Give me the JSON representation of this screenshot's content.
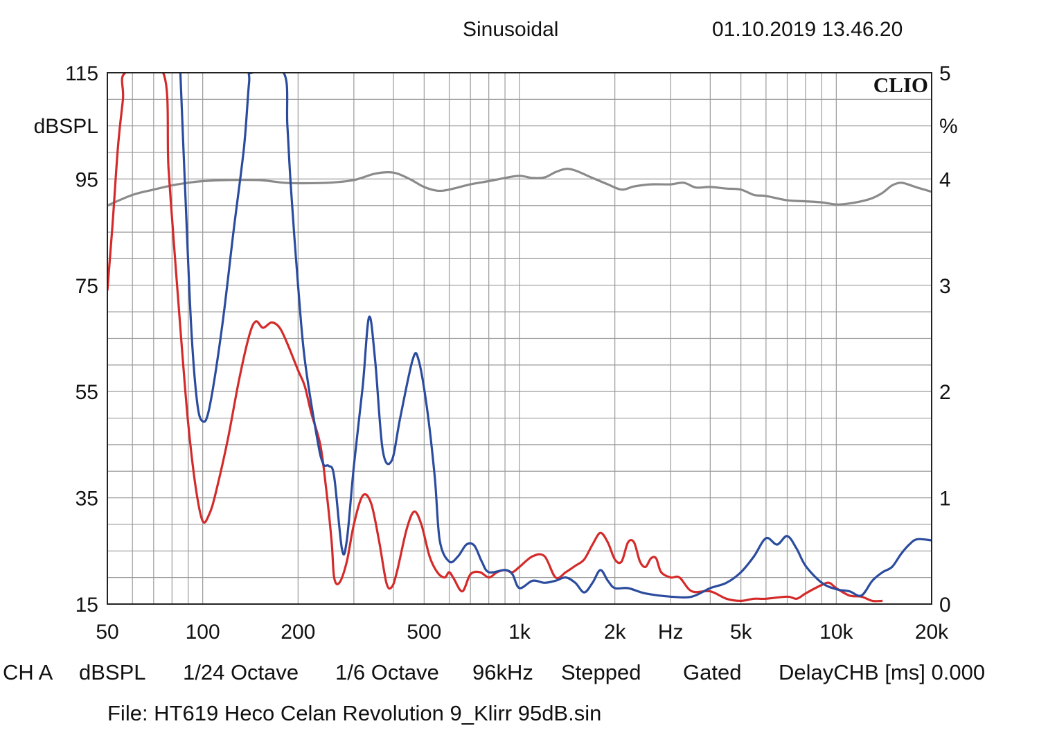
{
  "header": {
    "mode": "Sinusoidal",
    "datetime": "01.10.2019 13.46.20"
  },
  "logo": "CLIO",
  "footer": {
    "items": [
      "CH A",
      "dBSPL",
      "1/24 Octave",
      "1/6 Octave",
      "96kHz",
      "Stepped",
      "Gated",
      "DelayCHB [ms] 0.000"
    ],
    "file": "File: HT619 Heco Celan Revolution 9_Klirr 95dB.sin"
  },
  "chart_data": {
    "type": "line",
    "x_scale": "log",
    "xlim": [
      50,
      20000
    ],
    "x_ticks": [
      {
        "value": 50,
        "label": "50"
      },
      {
        "value": 100,
        "label": "100"
      },
      {
        "value": 200,
        "label": "200"
      },
      {
        "value": 500,
        "label": "500"
      },
      {
        "value": 1000,
        "label": "1k"
      },
      {
        "value": 2000,
        "label": "2k"
      },
      {
        "value": 3000,
        "label": "Hz"
      },
      {
        "value": 5000,
        "label": "5k"
      },
      {
        "value": 10000,
        "label": "10k"
      },
      {
        "value": 20000,
        "label": "20k"
      }
    ],
    "y_left": {
      "label": "dBSPL",
      "lim": [
        15,
        115
      ],
      "ticks": [
        15,
        35,
        55,
        75,
        95,
        115
      ]
    },
    "y_right": {
      "label": "%",
      "lim": [
        0,
        5
      ],
      "ticks": [
        0,
        1,
        2,
        3,
        4,
        5
      ]
    },
    "grid": true,
    "colors": {
      "grid": "#9a9a9a",
      "frame": "#222222"
    },
    "series": [
      {
        "color": "#8a8a8a",
        "axis": "left",
        "points": [
          [
            50,
            90
          ],
          [
            60,
            92
          ],
          [
            70,
            93
          ],
          [
            80,
            93.8
          ],
          [
            90,
            94.3
          ],
          [
            100,
            94.6
          ],
          [
            120,
            94.8
          ],
          [
            150,
            94.8
          ],
          [
            180,
            94.3
          ],
          [
            200,
            94.2
          ],
          [
            250,
            94.3
          ],
          [
            300,
            94.8
          ],
          [
            350,
            96
          ],
          [
            400,
            96.2
          ],
          [
            450,
            95
          ],
          [
            500,
            93.5
          ],
          [
            550,
            92.8
          ],
          [
            600,
            93
          ],
          [
            700,
            94
          ],
          [
            800,
            94.6
          ],
          [
            900,
            95.2
          ],
          [
            1000,
            95.6
          ],
          [
            1100,
            95.2
          ],
          [
            1200,
            95.3
          ],
          [
            1300,
            96.3
          ],
          [
            1400,
            96.9
          ],
          [
            1500,
            96.6
          ],
          [
            1700,
            95.2
          ],
          [
            1900,
            94
          ],
          [
            2100,
            93
          ],
          [
            2300,
            93.6
          ],
          [
            2600,
            94
          ],
          [
            3000,
            94
          ],
          [
            3300,
            94.3
          ],
          [
            3600,
            93.4
          ],
          [
            4000,
            93.5
          ],
          [
            4500,
            93.2
          ],
          [
            5000,
            93
          ],
          [
            5500,
            92
          ],
          [
            6000,
            91.8
          ],
          [
            7000,
            91
          ],
          [
            8000,
            90.8
          ],
          [
            9000,
            90.6
          ],
          [
            10000,
            90.2
          ],
          [
            11000,
            90.4
          ],
          [
            12000,
            90.8
          ],
          [
            13000,
            91.4
          ],
          [
            14000,
            92.4
          ],
          [
            15000,
            93.8
          ],
          [
            16000,
            94.3
          ],
          [
            17000,
            93.9
          ],
          [
            18000,
            93.4
          ],
          [
            20000,
            92.6
          ]
        ]
      },
      {
        "color": "#d42a2a",
        "axis": "right",
        "points": [
          [
            50,
            2.95
          ],
          [
            52,
            3.6
          ],
          [
            54,
            4.3
          ],
          [
            56,
            4.75
          ],
          [
            57,
            5.0
          ],
          [
            75,
            5.0
          ],
          [
            78,
            4.1
          ],
          [
            82,
            3.2
          ],
          [
            86,
            2.4
          ],
          [
            90,
            1.7
          ],
          [
            95,
            1.1
          ],
          [
            100,
            0.78
          ],
          [
            105,
            0.85
          ],
          [
            110,
            1.05
          ],
          [
            120,
            1.55
          ],
          [
            130,
            2.1
          ],
          [
            140,
            2.52
          ],
          [
            147,
            2.66
          ],
          [
            155,
            2.6
          ],
          [
            165,
            2.65
          ],
          [
            175,
            2.6
          ],
          [
            185,
            2.45
          ],
          [
            200,
            2.2
          ],
          [
            210,
            2.05
          ],
          [
            220,
            1.8
          ],
          [
            235,
            1.5
          ],
          [
            245,
            1.1
          ],
          [
            255,
            0.6
          ],
          [
            260,
            0.25
          ],
          [
            270,
            0.2
          ],
          [
            285,
            0.4
          ],
          [
            300,
            0.75
          ],
          [
            320,
            1.02
          ],
          [
            340,
            0.95
          ],
          [
            360,
            0.6
          ],
          [
            380,
            0.2
          ],
          [
            395,
            0.16
          ],
          [
            410,
            0.3
          ],
          [
            440,
            0.7
          ],
          [
            465,
            0.87
          ],
          [
            490,
            0.75
          ],
          [
            520,
            0.45
          ],
          [
            550,
            0.3
          ],
          [
            580,
            0.25
          ],
          [
            600,
            0.3
          ],
          [
            620,
            0.24
          ],
          [
            660,
            0.12
          ],
          [
            700,
            0.28
          ],
          [
            750,
            0.3
          ],
          [
            800,
            0.25
          ],
          [
            850,
            0.3
          ],
          [
            900,
            0.32
          ],
          [
            950,
            0.3
          ],
          [
            1000,
            0.35
          ],
          [
            1100,
            0.45
          ],
          [
            1200,
            0.45
          ],
          [
            1300,
            0.25
          ],
          [
            1400,
            0.3
          ],
          [
            1500,
            0.36
          ],
          [
            1600,
            0.42
          ],
          [
            1700,
            0.56
          ],
          [
            1800,
            0.67
          ],
          [
            1900,
            0.58
          ],
          [
            2000,
            0.42
          ],
          [
            2100,
            0.4
          ],
          [
            2200,
            0.58
          ],
          [
            2300,
            0.58
          ],
          [
            2400,
            0.4
          ],
          [
            2500,
            0.35
          ],
          [
            2600,
            0.43
          ],
          [
            2700,
            0.43
          ],
          [
            2800,
            0.3
          ],
          [
            3000,
            0.25
          ],
          [
            3200,
            0.25
          ],
          [
            3500,
            0.12
          ],
          [
            4000,
            0.12
          ],
          [
            4500,
            0.05
          ],
          [
            5000,
            0.03
          ],
          [
            5500,
            0.05
          ],
          [
            6000,
            0.05
          ],
          [
            7000,
            0.07
          ],
          [
            7500,
            0.05
          ],
          [
            8000,
            0.1
          ],
          [
            9000,
            0.18
          ],
          [
            9500,
            0.2
          ],
          [
            10000,
            0.15
          ],
          [
            11000,
            0.08
          ],
          [
            12000,
            0.07
          ],
          [
            13000,
            0.03
          ],
          [
            14000,
            0.03
          ]
        ]
      },
      {
        "color": "#2b4c9e",
        "axis": "right",
        "points": [
          [
            85,
            5.0
          ],
          [
            88,
            3.9
          ],
          [
            92,
            2.6
          ],
          [
            96,
            1.9
          ],
          [
            100,
            1.72
          ],
          [
            105,
            1.85
          ],
          [
            115,
            2.6
          ],
          [
            125,
            3.5
          ],
          [
            135,
            4.3
          ],
          [
            140,
            4.9
          ],
          [
            143,
            5.0
          ],
          [
            180,
            5.0
          ],
          [
            185,
            4.5
          ],
          [
            190,
            3.9
          ],
          [
            200,
            3.0
          ],
          [
            210,
            2.3
          ],
          [
            230,
            1.55
          ],
          [
            240,
            1.32
          ],
          [
            250,
            1.3
          ],
          [
            260,
            1.2
          ],
          [
            275,
            0.52
          ],
          [
            285,
            0.6
          ],
          [
            300,
            1.3
          ],
          [
            320,
            2.05
          ],
          [
            335,
            2.7
          ],
          [
            350,
            2.3
          ],
          [
            370,
            1.45
          ],
          [
            395,
            1.35
          ],
          [
            420,
            1.75
          ],
          [
            460,
            2.3
          ],
          [
            480,
            2.3
          ],
          [
            510,
            1.85
          ],
          [
            540,
            1.2
          ],
          [
            560,
            0.6
          ],
          [
            600,
            0.4
          ],
          [
            640,
            0.45
          ],
          [
            680,
            0.56
          ],
          [
            720,
            0.55
          ],
          [
            760,
            0.4
          ],
          [
            800,
            0.3
          ],
          [
            900,
            0.32
          ],
          [
            950,
            0.28
          ],
          [
            1000,
            0.15
          ],
          [
            1100,
            0.22
          ],
          [
            1200,
            0.2
          ],
          [
            1300,
            0.22
          ],
          [
            1400,
            0.25
          ],
          [
            1500,
            0.2
          ],
          [
            1600,
            0.11
          ],
          [
            1700,
            0.2
          ],
          [
            1800,
            0.32
          ],
          [
            1900,
            0.22
          ],
          [
            2000,
            0.15
          ],
          [
            2200,
            0.15
          ],
          [
            2500,
            0.1
          ],
          [
            3000,
            0.07
          ],
          [
            3500,
            0.07
          ],
          [
            4000,
            0.15
          ],
          [
            4500,
            0.2
          ],
          [
            5000,
            0.3
          ],
          [
            5500,
            0.45
          ],
          [
            6000,
            0.62
          ],
          [
            6500,
            0.56
          ],
          [
            7000,
            0.64
          ],
          [
            7500,
            0.52
          ],
          [
            8000,
            0.36
          ],
          [
            9000,
            0.2
          ],
          [
            10000,
            0.14
          ],
          [
            11000,
            0.12
          ],
          [
            12000,
            0.08
          ],
          [
            13000,
            0.22
          ],
          [
            14000,
            0.3
          ],
          [
            15000,
            0.35
          ],
          [
            16000,
            0.47
          ],
          [
            17000,
            0.56
          ],
          [
            18000,
            0.61
          ],
          [
            20000,
            0.6
          ]
        ]
      }
    ]
  }
}
